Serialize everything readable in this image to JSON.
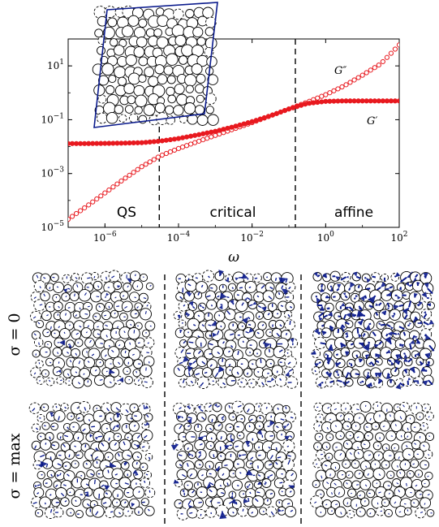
{
  "chart_data": {
    "type": "scatter",
    "xscale": "log",
    "yscale": "log",
    "xlim": [
      1e-07,
      100
    ],
    "ylim": [
      1e-05,
      100
    ],
    "xlabel": "ω",
    "xticks": [
      1e-06,
      0.0001,
      0.01,
      1,
      100
    ],
    "xtick_labels": [
      "10^-6",
      "10^-4",
      "10^-2",
      "10^0",
      "10^2"
    ],
    "yticks": [
      1e-05,
      0.001,
      0.1,
      10
    ],
    "ytick_labels": [
      "10^-5",
      "10^-3",
      "10^-1",
      "10^1"
    ],
    "grid": false,
    "regime_boundaries": [
      3e-05,
      0.15
    ],
    "regimes": [
      "QS",
      "critical",
      "affine"
    ],
    "series": [
      {
        "name": "G′",
        "marker": "filled-circle",
        "color": "#e8191f",
        "x": [
          1e-07,
          3.16e-07,
          1e-06,
          3.16e-06,
          1e-05,
          3.16e-05,
          0.0001,
          0.000316,
          0.001,
          0.00316,
          0.01,
          0.0316,
          0.1,
          0.316,
          1,
          3.16,
          10,
          31.6,
          100
        ],
        "y": [
          0.013,
          0.013,
          0.0132,
          0.0135,
          0.014,
          0.016,
          0.02,
          0.027,
          0.037,
          0.055,
          0.085,
          0.14,
          0.25,
          0.4,
          0.48,
          0.5,
          0.5,
          0.5,
          0.5
        ]
      },
      {
        "name": "G″",
        "marker": "open-circle",
        "color": "#e8191f",
        "x": [
          1e-07,
          3.16e-07,
          1e-06,
          3.16e-06,
          1e-05,
          3.16e-05,
          0.0001,
          0.000316,
          0.001,
          0.00316,
          0.01,
          0.0316,
          0.1,
          0.316,
          1,
          3.16,
          10,
          31.6,
          100
        ],
        "y": [
          2e-05,
          6e-05,
          0.00019,
          0.0006,
          0.0018,
          0.0045,
          0.0085,
          0.015,
          0.026,
          0.045,
          0.078,
          0.14,
          0.25,
          0.45,
          0.85,
          1.8,
          4.5,
          12,
          60
        ]
      }
    ],
    "annotations": [
      "QS",
      "critical",
      "affine",
      "G″",
      "G′"
    ]
  },
  "panels": {
    "row_labels": [
      "σ = 0",
      "σ = max"
    ],
    "line_color": "#0a1a8c"
  }
}
